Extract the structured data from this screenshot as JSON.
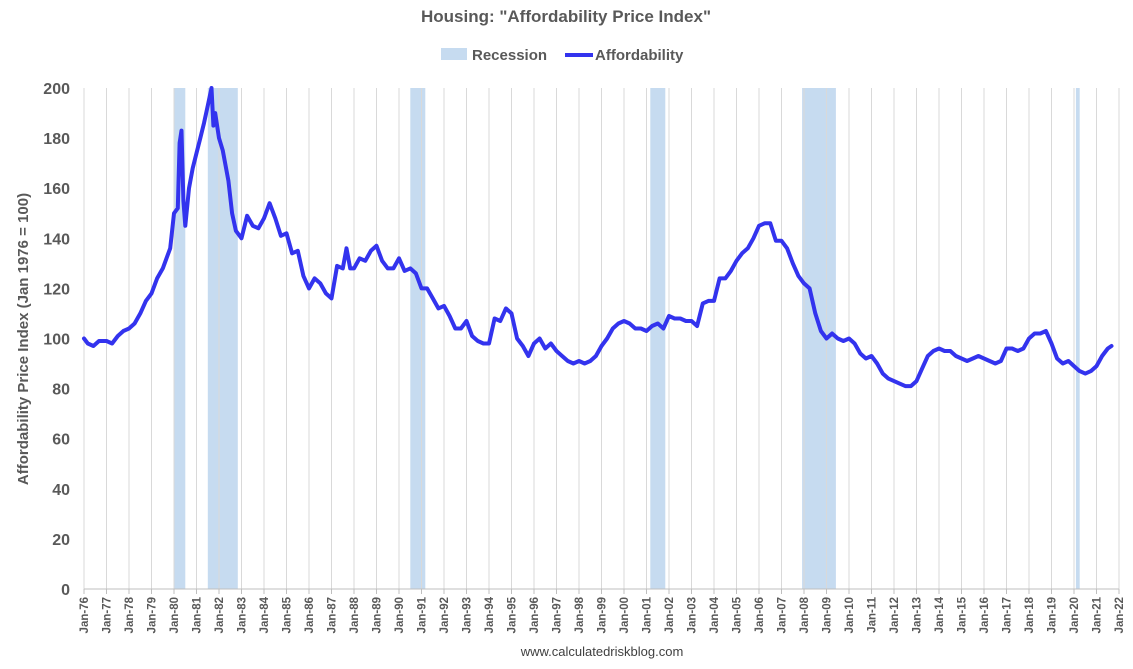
{
  "chart_data": {
    "type": "line",
    "title": "Housing: \"Affordability Price Index\"",
    "ylabel": "Affordability Price Index (Jan 1976 = 100)",
    "source": "www.calculatedriskblog.com",
    "ylim": [
      0,
      200
    ],
    "yticks": [
      0,
      20,
      40,
      60,
      80,
      100,
      120,
      140,
      160,
      180,
      200
    ],
    "xticks": [
      "Jan-76",
      "Jan-77",
      "Jan-78",
      "Jan-79",
      "Jan-80",
      "Jan-81",
      "Jan-82",
      "Jan-83",
      "Jan-84",
      "Jan-85",
      "Jan-86",
      "Jan-87",
      "Jan-88",
      "Jan-89",
      "Jan-90",
      "Jan-91",
      "Jan-92",
      "Jan-93",
      "Jan-94",
      "Jan-95",
      "Jan-96",
      "Jan-97",
      "Jan-98",
      "Jan-99",
      "Jan-00",
      "Jan-01",
      "Jan-02",
      "Jan-03",
      "Jan-04",
      "Jan-05",
      "Jan-06",
      "Jan-07",
      "Jan-08",
      "Jan-09",
      "Jan-10",
      "Jan-11",
      "Jan-12",
      "Jan-13",
      "Jan-14",
      "Jan-15",
      "Jan-16",
      "Jan-17",
      "Jan-18",
      "Jan-19",
      "Jan-20",
      "Jan-21",
      "Jan-22"
    ],
    "legend": {
      "position": "top-center",
      "entries": [
        {
          "name": "Recession",
          "kind": "area",
          "color": "#c6dbf0"
        },
        {
          "name": "Affordability",
          "kind": "line",
          "color": "#3333ee"
        }
      ]
    },
    "grid": {
      "vertical": true,
      "horizontal": false,
      "color": "#d9d9d9"
    },
    "recessions": [
      {
        "start": "1980-01",
        "end": "1980-07"
      },
      {
        "start": "1981-07",
        "end": "1982-11"
      },
      {
        "start": "1990-07",
        "end": "1991-03"
      },
      {
        "start": "2001-03",
        "end": "2001-11"
      },
      {
        "start": "2007-12",
        "end": "2009-06"
      },
      {
        "start": "2020-02",
        "end": "2020-04"
      }
    ],
    "series": [
      {
        "name": "Affordability",
        "color": "#3333ee",
        "points": [
          [
            "1976-01",
            100
          ],
          [
            "1976-03",
            98
          ],
          [
            "1976-06",
            97
          ],
          [
            "1976-09",
            99
          ],
          [
            "1977-01",
            99
          ],
          [
            "1977-04",
            98
          ],
          [
            "1977-07",
            101
          ],
          [
            "1977-10",
            103
          ],
          [
            "1978-01",
            104
          ],
          [
            "1978-04",
            106
          ],
          [
            "1978-07",
            110
          ],
          [
            "1978-10",
            115
          ],
          [
            "1979-01",
            118
          ],
          [
            "1979-04",
            124
          ],
          [
            "1979-07",
            128
          ],
          [
            "1979-09",
            132
          ],
          [
            "1979-11",
            136
          ],
          [
            "1980-01",
            150
          ],
          [
            "1980-03",
            152
          ],
          [
            "1980-04",
            178
          ],
          [
            "1980-05",
            183
          ],
          [
            "1980-06",
            155
          ],
          [
            "1980-07",
            145
          ],
          [
            "1980-09",
            160
          ],
          [
            "1980-11",
            168
          ],
          [
            "1981-01",
            174
          ],
          [
            "1981-03",
            180
          ],
          [
            "1981-05",
            186
          ],
          [
            "1981-07",
            193
          ],
          [
            "1981-09",
            200
          ],
          [
            "1981-10",
            185
          ],
          [
            "1981-11",
            190
          ],
          [
            "1982-01",
            180
          ],
          [
            "1982-03",
            175
          ],
          [
            "1982-06",
            163
          ],
          [
            "1982-08",
            150
          ],
          [
            "1982-10",
            143
          ],
          [
            "1983-01",
            140
          ],
          [
            "1983-04",
            149
          ],
          [
            "1983-07",
            145
          ],
          [
            "1983-10",
            144
          ],
          [
            "1984-01",
            148
          ],
          [
            "1984-04",
            154
          ],
          [
            "1984-07",
            148
          ],
          [
            "1984-10",
            141
          ],
          [
            "1985-01",
            142
          ],
          [
            "1985-04",
            134
          ],
          [
            "1985-07",
            135
          ],
          [
            "1985-10",
            125
          ],
          [
            "1986-01",
            120
          ],
          [
            "1986-04",
            124
          ],
          [
            "1986-07",
            122
          ],
          [
            "1986-10",
            118
          ],
          [
            "1987-01",
            116
          ],
          [
            "1987-04",
            129
          ],
          [
            "1987-07",
            128
          ],
          [
            "1987-09",
            136
          ],
          [
            "1987-11",
            128
          ],
          [
            "1988-01",
            128
          ],
          [
            "1988-04",
            132
          ],
          [
            "1988-07",
            131
          ],
          [
            "1988-10",
            135
          ],
          [
            "1989-01",
            137
          ],
          [
            "1989-04",
            131
          ],
          [
            "1989-07",
            128
          ],
          [
            "1989-10",
            128
          ],
          [
            "1990-01",
            132
          ],
          [
            "1990-04",
            127
          ],
          [
            "1990-07",
            128
          ],
          [
            "1990-10",
            126
          ],
          [
            "1991-01",
            120
          ],
          [
            "1991-04",
            120
          ],
          [
            "1991-07",
            116
          ],
          [
            "1991-10",
            112
          ],
          [
            "1992-01",
            113
          ],
          [
            "1992-04",
            109
          ],
          [
            "1992-07",
            104
          ],
          [
            "1992-10",
            104
          ],
          [
            "1993-01",
            107
          ],
          [
            "1993-04",
            101
          ],
          [
            "1993-07",
            99
          ],
          [
            "1993-10",
            98
          ],
          [
            "1994-01",
            98
          ],
          [
            "1994-04",
            108
          ],
          [
            "1994-07",
            107
          ],
          [
            "1994-10",
            112
          ],
          [
            "1995-01",
            110
          ],
          [
            "1995-04",
            100
          ],
          [
            "1995-07",
            97
          ],
          [
            "1995-10",
            93
          ],
          [
            "1996-01",
            98
          ],
          [
            "1996-04",
            100
          ],
          [
            "1996-07",
            96
          ],
          [
            "1996-10",
            98
          ],
          [
            "1997-01",
            95
          ],
          [
            "1997-04",
            93
          ],
          [
            "1997-07",
            91
          ],
          [
            "1997-10",
            90
          ],
          [
            "1998-01",
            91
          ],
          [
            "1998-04",
            90
          ],
          [
            "1998-07",
            91
          ],
          [
            "1998-10",
            93
          ],
          [
            "1999-01",
            97
          ],
          [
            "1999-04",
            100
          ],
          [
            "1999-07",
            104
          ],
          [
            "1999-10",
            106
          ],
          [
            "2000-01",
            107
          ],
          [
            "2000-04",
            106
          ],
          [
            "2000-07",
            104
          ],
          [
            "2000-10",
            104
          ],
          [
            "2001-01",
            103
          ],
          [
            "2001-04",
            105
          ],
          [
            "2001-07",
            106
          ],
          [
            "2001-10",
            104
          ],
          [
            "2002-01",
            109
          ],
          [
            "2002-04",
            108
          ],
          [
            "2002-07",
            108
          ],
          [
            "2002-10",
            107
          ],
          [
            "2003-01",
            107
          ],
          [
            "2003-04",
            105
          ],
          [
            "2003-07",
            114
          ],
          [
            "2003-10",
            115
          ],
          [
            "2004-01",
            115
          ],
          [
            "2004-04",
            124
          ],
          [
            "2004-07",
            124
          ],
          [
            "2004-10",
            127
          ],
          [
            "2005-01",
            131
          ],
          [
            "2005-04",
            134
          ],
          [
            "2005-07",
            136
          ],
          [
            "2005-10",
            140
          ],
          [
            "2006-01",
            145
          ],
          [
            "2006-04",
            146
          ],
          [
            "2006-07",
            146
          ],
          [
            "2006-10",
            139
          ],
          [
            "2007-01",
            139
          ],
          [
            "2007-04",
            136
          ],
          [
            "2007-07",
            130
          ],
          [
            "2007-10",
            125
          ],
          [
            "2008-01",
            122
          ],
          [
            "2008-04",
            120
          ],
          [
            "2008-07",
            110
          ],
          [
            "2008-10",
            103
          ],
          [
            "2009-01",
            100
          ],
          [
            "2009-04",
            102
          ],
          [
            "2009-07",
            100
          ],
          [
            "2009-10",
            99
          ],
          [
            "2010-01",
            100
          ],
          [
            "2010-04",
            98
          ],
          [
            "2010-07",
            94
          ],
          [
            "2010-10",
            92
          ],
          [
            "2011-01",
            93
          ],
          [
            "2011-04",
            90
          ],
          [
            "2011-07",
            86
          ],
          [
            "2011-10",
            84
          ],
          [
            "2012-01",
            83
          ],
          [
            "2012-04",
            82
          ],
          [
            "2012-07",
            81
          ],
          [
            "2012-10",
            81
          ],
          [
            "2013-01",
            83
          ],
          [
            "2013-04",
            88
          ],
          [
            "2013-07",
            93
          ],
          [
            "2013-10",
            95
          ],
          [
            "2014-01",
            96
          ],
          [
            "2014-04",
            95
          ],
          [
            "2014-07",
            95
          ],
          [
            "2014-10",
            93
          ],
          [
            "2015-01",
            92
          ],
          [
            "2015-04",
            91
          ],
          [
            "2015-07",
            92
          ],
          [
            "2015-10",
            93
          ],
          [
            "2016-01",
            92
          ],
          [
            "2016-04",
            91
          ],
          [
            "2016-07",
            90
          ],
          [
            "2016-10",
            91
          ],
          [
            "2017-01",
            96
          ],
          [
            "2017-04",
            96
          ],
          [
            "2017-07",
            95
          ],
          [
            "2017-10",
            96
          ],
          [
            "2018-01",
            100
          ],
          [
            "2018-04",
            102
          ],
          [
            "2018-07",
            102
          ],
          [
            "2018-10",
            103
          ],
          [
            "2019-01",
            98
          ],
          [
            "2019-04",
            92
          ],
          [
            "2019-07",
            90
          ],
          [
            "2019-10",
            91
          ],
          [
            "2020-01",
            89
          ],
          [
            "2020-04",
            87
          ],
          [
            "2020-07",
            86
          ],
          [
            "2020-10",
            87
          ],
          [
            "2021-01",
            89
          ],
          [
            "2021-04",
            93
          ],
          [
            "2021-07",
            96
          ],
          [
            "2021-09",
            97
          ]
        ]
      }
    ]
  }
}
